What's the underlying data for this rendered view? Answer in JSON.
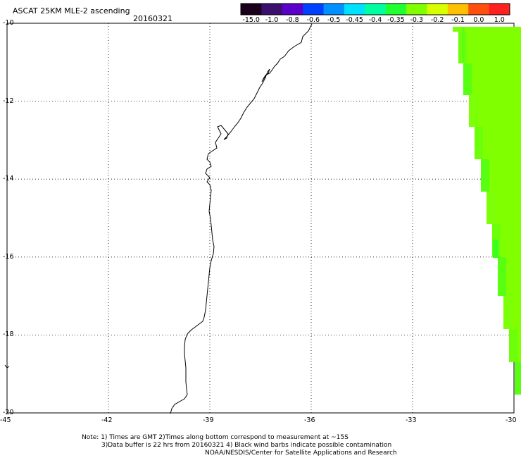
{
  "header": {
    "title": "ASCAT 25KM MLE-2 ascending",
    "date": "20160321"
  },
  "colorbar": {
    "labels": [
      "-15.0",
      "-1.0",
      "-0.8",
      "-0.6",
      "-0.5",
      "-0.45",
      "-0.4",
      "-0.35",
      "-0.3",
      "-0.2",
      "-0.1",
      "0.0",
      "1.0"
    ],
    "colors": [
      "#1a001a",
      "#3c0f6e",
      "#5a00c8",
      "#0040ff",
      "#0090ff",
      "#00e0ff",
      "#00ffa0",
      "#20ff30",
      "#80ff00",
      "#d8ff00",
      "#ffc000",
      "#ff5010",
      "#ff2020"
    ]
  },
  "map": {
    "lat_labels": [
      "-10",
      "-12",
      "-14",
      "-16",
      "-18",
      "-20"
    ],
    "lon_labels": [
      "-45",
      "-42",
      "-39",
      "-36",
      "-33",
      "-30"
    ],
    "swath_colors": [
      "#80ff00",
      "#7aff10",
      "#5cff10",
      "#38ff20"
    ]
  },
  "notes": {
    "line1": "Note: 1) Times are GMT 2)Times along bottom correspond to measurement at ~15S",
    "line2": "3)Data buffer is 22 hrs from 20160321 4) Black wind barbs indicate possible contamination",
    "line3": "NOAA/NESDIS/Center for Satellite Applications and Research"
  }
}
